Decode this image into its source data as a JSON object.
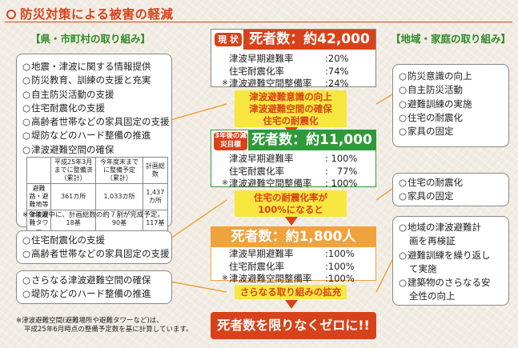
{
  "title": "防災対策による被害の軽減",
  "left_header": "【県・市町村の取り組み】",
  "right_header": "【地域・家庭の取り組み】",
  "left_box1": {
    "items": [
      "地震・津波に関する情報提供",
      "防災教育、訓練の支援と充実",
      "自主防災活動の支援",
      "住宅耐震化の支援",
      "高齢者世帯などの家具固定の支援",
      "堤防などのハード整備の推進",
      "津波避難空間の確保"
    ]
  },
  "table": {
    "headers": [
      "",
      "平成25年3月までに整備済（累計）",
      "今年度末までに整備予定（累計）",
      "計画総数"
    ],
    "rows": [
      [
        "避難路・避難地等",
        "361カ所",
        "1,033カ所",
        "1,437カ所"
      ],
      [
        "津波避難タワー",
        "18基",
        "90基",
        "117基"
      ]
    ]
  },
  "table_note": "※今年度中に、計画総数の約７割が完成予定。",
  "left_box2": {
    "items": [
      "住宅耐震化の支援",
      "高齢者世帯などの家具固定の支援"
    ]
  },
  "left_box3": {
    "items": [
      "さらなる津波避難空間の確保",
      "堤防などのハード整備の推進"
    ]
  },
  "footnote": [
    "※津波避難空間(避難場所や避難タワーなど)は、",
    "平成25年6月時点の整備予定数を基に計算しています。"
  ],
  "stage1": {
    "badge": "現 状",
    "deaths": "死者数：約42,000人",
    "rows": [
      {
        "label": "津波早期避難率",
        "value": "20%",
        "mark": ""
      },
      {
        "label": "住宅耐震化率",
        "value": "74%",
        "mark": ""
      },
      {
        "label": "津波避難空間整備率",
        "value": "24%",
        "mark": "※"
      }
    ]
  },
  "band1": [
    "津波避難意識の向上",
    "津波避難空間の確保",
    "住宅の耐震化"
  ],
  "stage2": {
    "badge": "3年後の減災目標",
    "deaths": "死者数：約11,000人",
    "rows": [
      {
        "label": "津波早期避難率",
        "value": "100%",
        "mark": ""
      },
      {
        "label": "住宅耐震化率",
        "value": "77%",
        "mark": ""
      },
      {
        "label": "津波避難空間整備率",
        "value": "100%",
        "mark": "※"
      }
    ]
  },
  "band2": [
    "住宅の耐震化率が",
    "100%になると"
  ],
  "stage3": {
    "deaths": "死者数：約1,800人",
    "rows": [
      {
        "label": "津波早期避難率",
        "value": "100%",
        "mark": ""
      },
      {
        "label": "住宅耐震化率",
        "value": "100%",
        "mark": ""
      },
      {
        "label": "津波避難空間整備率",
        "value": "100%",
        "mark": "※"
      }
    ]
  },
  "band3": "さらなる取り組みの拡充",
  "final": "死者数を限りなくゼロに!!",
  "right_box1": {
    "items": [
      "防災意識の向上",
      "自主防災活動",
      "避難訓練の実施",
      "住宅の耐震化",
      "家具の固定"
    ]
  },
  "right_box2": {
    "items": [
      "住宅の耐震化",
      "家具の固定"
    ]
  },
  "right_box3": {
    "items": [
      "地域の津波避難計",
      "画を再検証",
      "避難訓練を繰り返し",
      "て実施",
      "建築物のさらなる安",
      "全性の向上"
    ]
  },
  "colors": {
    "accent": "#d8421a",
    "green": "#2f8a2a",
    "yellow": "#f7e73f",
    "orange": "#f0a23c",
    "stage1_head": "#d8421a",
    "stage2_head": "#2f9a3a",
    "stage3_head": "#f0a23c"
  }
}
